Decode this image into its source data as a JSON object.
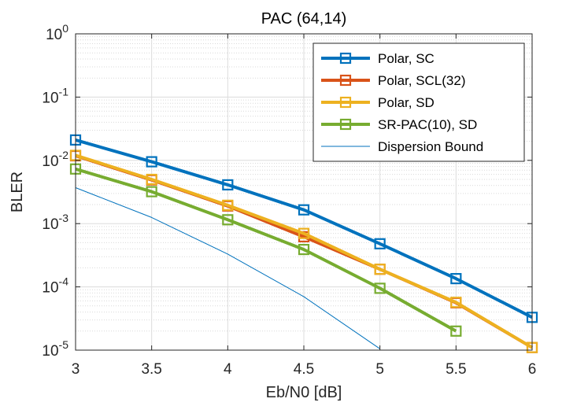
{
  "chart_data": {
    "type": "line",
    "title": "PAC (64,14)",
    "xlabel": "Eb/N0 [dB]",
    "ylabel": "BLER",
    "xlim": [
      3,
      6
    ],
    "ylim_log10": [
      -5,
      0
    ],
    "yscale": "log",
    "grid": true,
    "x_ticks": [
      "3",
      "3.5",
      "4",
      "4.5",
      "5",
      "5.5",
      "6"
    ],
    "y_tick_exponents": [
      "0",
      "-1",
      "-2",
      "-3",
      "-4",
      "-5"
    ],
    "y_tick_base": "10",
    "legend_position": "top-right",
    "series": [
      {
        "name": "Polar, SC",
        "color": "#0072BD",
        "marker": "square",
        "linewidth": 4,
        "x": [
          3,
          3.5,
          4,
          4.5,
          5,
          5.5,
          6
        ],
        "y": [
          0.021,
          0.0095,
          0.0041,
          0.00165,
          0.00048,
          0.000135,
          3.3e-05
        ]
      },
      {
        "name": "Polar, SCL(32)",
        "color": "#D95319",
        "marker": "square",
        "linewidth": 4,
        "x": [
          3,
          3.5,
          4,
          4.5,
          5,
          5.5,
          6
        ],
        "y": [
          0.0118,
          0.0049,
          0.0019,
          0.00062,
          0.00019,
          5.6e-05,
          1.1e-05
        ]
      },
      {
        "name": "Polar, SD",
        "color": "#EDB120",
        "marker": "square",
        "linewidth": 4,
        "x": [
          3,
          3.5,
          4,
          4.5,
          5,
          5.5,
          6
        ],
        "y": [
          0.012,
          0.005,
          0.00195,
          0.0007,
          0.00019,
          5.7e-05,
          1.1e-05
        ]
      },
      {
        "name": "SR-PAC(10), SD",
        "color": "#77AC30",
        "marker": "square",
        "linewidth": 4,
        "x": [
          3,
          3.5,
          4,
          4.5,
          5,
          5.5
        ],
        "y": [
          0.0073,
          0.0032,
          0.00115,
          0.00039,
          9.5e-05,
          2e-05
        ]
      },
      {
        "name": "Dispersion Bound",
        "color": "#0072BD",
        "marker": "none",
        "linewidth": 1,
        "x": [
          3,
          3.5,
          4,
          4.5,
          5
        ],
        "y": [
          0.0037,
          0.00125,
          0.00033,
          7e-05,
          1.05e-05
        ]
      }
    ]
  }
}
